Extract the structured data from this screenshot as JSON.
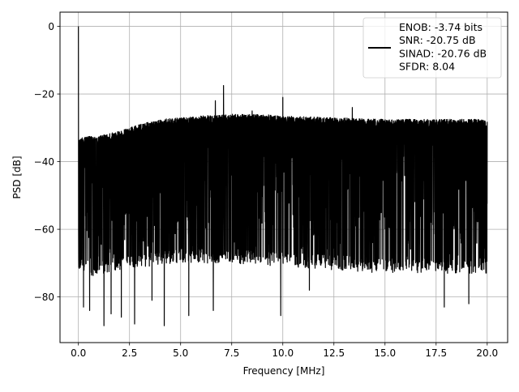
{
  "chart_data": {
    "type": "line",
    "xlabel": "Frequency [MHz]",
    "ylabel": "PSD [dB]",
    "xlim": [
      -0.9,
      21.0
    ],
    "ylim": [
      -93.5,
      4.2
    ],
    "xticks": [
      0.0,
      2.5,
      5.0,
      7.5,
      10.0,
      12.5,
      15.0,
      17.5,
      20.0
    ],
    "xtick_labels": [
      "0.0",
      "2.5",
      "5.0",
      "7.5",
      "10.0",
      "12.5",
      "15.0",
      "17.5",
      "20.0"
    ],
    "yticks": [
      0,
      -20,
      -40,
      -60,
      -80
    ],
    "ytick_labels": [
      "0",
      "−20",
      "−40",
      "−60",
      "−80"
    ],
    "grid": true,
    "legend_position": "top-right",
    "legend_lines": [
      "ENOB: -3.74 bits",
      "SNR: -20.75 dB",
      "SINAD: -20.76 dB",
      "SFDR: 8.04"
    ],
    "series": [
      {
        "color": "#000000",
        "description": "dense noise floor between roughly -75 dB and -30 dB across 0-20 MHz",
        "upper_envelope": {
          "x": [
            0.0,
            0.1,
            0.5,
            1.0,
            2.0,
            3.0,
            4.0,
            5.0,
            6.0,
            7.5,
            9.0,
            10.0,
            12.5,
            15.0,
            17.5,
            20.0
          ],
          "y": [
            -33,
            -33,
            -32.5,
            -32.5,
            -31,
            -29,
            -27.5,
            -27,
            -26.5,
            -26,
            -26,
            -26.5,
            -27,
            -27.5,
            -27.5,
            -27.5
          ]
        },
        "lower_envelope": {
          "x": [
            0.0,
            0.5,
            2.0,
            5.0,
            7.5,
            10.0,
            12.5,
            15.0,
            17.5,
            20.0
          ],
          "y": [
            -72,
            -74,
            -72,
            -70,
            -70,
            -71,
            -72,
            -73,
            -73,
            -73
          ]
        },
        "peaks": [
          {
            "x": 0.0,
            "y": 0
          },
          {
            "x": 6.7,
            "y": -22
          },
          {
            "x": 7.1,
            "y": -17.5
          },
          {
            "x": 10.0,
            "y": -21
          },
          {
            "x": 13.4,
            "y": -24
          },
          {
            "x": 8.5,
            "y": -25
          }
        ],
        "dips": [
          {
            "x": 0.25,
            "y": -83
          },
          {
            "x": 0.55,
            "y": -84
          },
          {
            "x": 1.25,
            "y": -88.5
          },
          {
            "x": 1.6,
            "y": -85
          },
          {
            "x": 2.1,
            "y": -86
          },
          {
            "x": 2.75,
            "y": -88
          },
          {
            "x": 3.6,
            "y": -81
          },
          {
            "x": 4.2,
            "y": -88.5
          },
          {
            "x": 5.4,
            "y": -85.5
          },
          {
            "x": 6.6,
            "y": -84
          },
          {
            "x": 9.9,
            "y": -85.5
          },
          {
            "x": 11.3,
            "y": -78
          },
          {
            "x": 17.9,
            "y": -83
          },
          {
            "x": 19.1,
            "y": -82
          }
        ]
      }
    ]
  }
}
